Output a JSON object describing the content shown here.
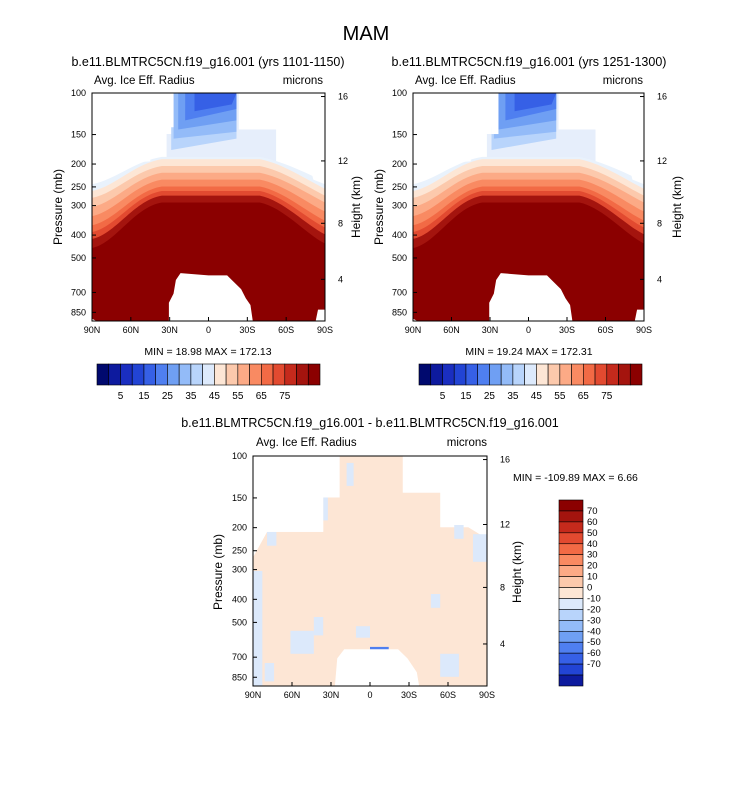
{
  "page_title": "MAM",
  "colors": {
    "darkest_red": "#8b0000",
    "white": "#ffffff",
    "positive_scale": [
      "#fde6d5",
      "#fcc9ac",
      "#fcaa86",
      "#f98a62",
      "#f26a45",
      "#e24a30",
      "#c52a1c",
      "#a4140e",
      "#8b0000"
    ],
    "negative_scale": [
      "#ddeafc",
      "#b8d4fb",
      "#93bbf8",
      "#6f9ff3",
      "#4f7ff0",
      "#3660e6",
      "#2244d4",
      "#1a2ec0",
      "#0d1a9e",
      "#00096e"
    ]
  },
  "chart_data": [
    {
      "type": "heatmap",
      "panel": "upper-left",
      "title": "b.e11.BLMTRC5CN.f19_g16.001 (yrs 1101-1150)",
      "left_string": "Avg. Ice Eff. Radius",
      "right_string": "microns",
      "xlabel": "",
      "ylabel": "Pressure (mb)",
      "ylabel_right": "Height (km)",
      "x_ticks": [
        "90N",
        "60N",
        "30N",
        "0",
        "30S",
        "60S",
        "90S"
      ],
      "y_ticks": [
        "100",
        "150",
        "200",
        "250",
        "300",
        "400",
        "500",
        "700",
        "850"
      ],
      "y_right_ticks": [
        "16",
        "12",
        "8",
        "4"
      ],
      "stats": "MIN = 18.98  MAX = 172.13",
      "min": 18.98,
      "max": 172.13
    },
    {
      "type": "heatmap",
      "panel": "upper-right",
      "title": "b.e11.BLMTRC5CN.f19_g16.001 (yrs 1251-1300)",
      "left_string": "Avg. Ice Eff. Radius",
      "right_string": "microns",
      "xlabel": "",
      "ylabel": "Pressure (mb)",
      "ylabel_right": "Height (km)",
      "x_ticks": [
        "90N",
        "60N",
        "30N",
        "0",
        "30S",
        "60S",
        "90S"
      ],
      "y_ticks": [
        "100",
        "150",
        "200",
        "250",
        "300",
        "400",
        "500",
        "700",
        "850"
      ],
      "y_right_ticks": [
        "16",
        "12",
        "8",
        "4"
      ],
      "stats": "MIN = 19.24  MAX = 172.31",
      "min": 19.24,
      "max": 172.31
    },
    {
      "type": "heatmap",
      "panel": "difference",
      "title": "b.e11.BLMTRC5CN.f19_g16.001 - b.e11.BLMTRC5CN.f19_g16.001",
      "left_string": "Avg. Ice Eff. Radius",
      "right_string": "microns",
      "xlabel": "",
      "ylabel": "Pressure (mb)",
      "ylabel_right": "Height (km)",
      "x_ticks": [
        "90N",
        "60N",
        "30N",
        "0",
        "30S",
        "60S",
        "90S"
      ],
      "y_ticks": [
        "100",
        "150",
        "200",
        "250",
        "300",
        "400",
        "500",
        "700",
        "850"
      ],
      "y_right_ticks": [
        "16",
        "12",
        "8",
        "4"
      ],
      "stats": "MIN = -109.89  MAX =   6.66",
      "min": -109.89,
      "max": 6.66
    }
  ],
  "colorbar_top": {
    "labels": [
      "5",
      "15",
      "25",
      "35",
      "45",
      "55",
      "65",
      "75"
    ],
    "levels": [
      0,
      5,
      10,
      15,
      20,
      25,
      30,
      35,
      40,
      45,
      50,
      55,
      60,
      65,
      70,
      75
    ],
    "colors": [
      "#00096e",
      "#0d1a9e",
      "#1a2ec0",
      "#2244d4",
      "#3660e6",
      "#4f7ff0",
      "#6f9ff3",
      "#93bbf8",
      "#b8d4fb",
      "#ddeafc",
      "#fde6d5",
      "#fcc9ac",
      "#fcaa86",
      "#f98a62",
      "#f26a45",
      "#e24a30",
      "#c52a1c",
      "#a4140e",
      "#8b0000"
    ]
  },
  "colorbar_diff": {
    "labels": [
      "70",
      "60",
      "50",
      "40",
      "30",
      "20",
      "10",
      "0",
      "-10",
      "-20",
      "-30",
      "-40",
      "-50",
      "-60",
      "-70"
    ],
    "colors": [
      "#8b0000",
      "#a4140e",
      "#c52a1c",
      "#e24a30",
      "#f26a45",
      "#f98a62",
      "#fcaa86",
      "#fcc9ac",
      "#fde6d5",
      "#ddeafc",
      "#b8d4fb",
      "#93bbf8",
      "#6f9ff3",
      "#4f7ff0",
      "#3660e6",
      "#2244d4",
      "#0d1a9e"
    ]
  }
}
